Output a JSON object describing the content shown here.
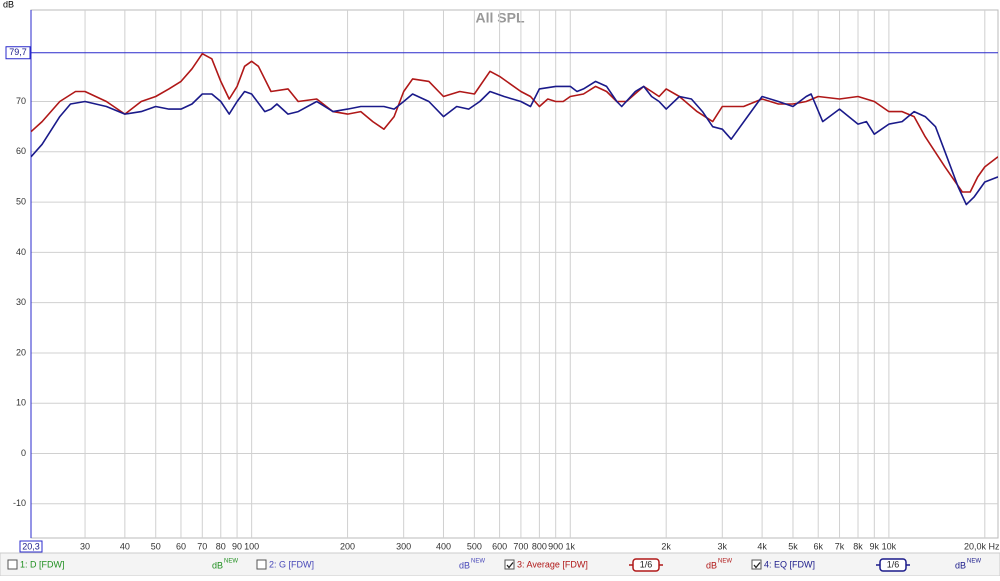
{
  "chart_data": {
    "type": "line",
    "title": "All SPL",
    "y_unit": "dB",
    "xscale": "log",
    "grid": true,
    "xlim": [
      20.3,
      22000
    ],
    "ylim": [
      -16.8,
      88.2
    ],
    "yticks": [
      -10,
      0,
      10,
      20,
      30,
      40,
      50,
      60,
      70
    ],
    "xticks": [
      {
        "value": 20.3,
        "label": "20,3"
      },
      30,
      40,
      50,
      60,
      70,
      80,
      90,
      100,
      200,
      300,
      400,
      500,
      600,
      700,
      800,
      900,
      {
        "value": 1000,
        "label": "1k"
      },
      {
        "value": 2000,
        "label": "2k"
      },
      {
        "value": 3000,
        "label": "3k"
      },
      {
        "value": 4000,
        "label": "4k"
      },
      {
        "value": 5000,
        "label": "5k"
      },
      {
        "value": 6000,
        "label": "6k"
      },
      {
        "value": 7000,
        "label": "7k"
      },
      {
        "value": 8000,
        "label": "8k"
      },
      {
        "value": 9000,
        "label": "9k"
      },
      {
        "value": 10000,
        "label": "10k"
      },
      {
        "value": 20000,
        "label": "20,0k Hz"
      }
    ],
    "cursor_y": {
      "value": 79.7,
      "label": "79,7",
      "color": "#2a2acc"
    },
    "hidden_series": [
      {
        "name": "1: D [FDW]",
        "color": "#1f8f1f",
        "checked": false,
        "unit": "dB",
        "unit_sup": "NEW"
      },
      {
        "name": "2: G [FDW]",
        "color": "#4646b8",
        "checked": false,
        "unit": "dB",
        "unit_sup": "NEW"
      }
    ],
    "series": [
      {
        "name": "3: Average [FDW]",
        "color": "#b01818",
        "checked": true,
        "smoothing": "1/6",
        "unit": "dB",
        "unit_sup": "NEW",
        "x": [
          20.3,
          22,
          25,
          28,
          30,
          35,
          40,
          45,
          50,
          55,
          60,
          65,
          70,
          75,
          80,
          85,
          90,
          95,
          100,
          105,
          115,
          130,
          140,
          160,
          180,
          200,
          220,
          240,
          260,
          280,
          300,
          320,
          360,
          400,
          450,
          500,
          560,
          600,
          700,
          750,
          800,
          850,
          900,
          950,
          1000,
          1100,
          1200,
          1300,
          1400,
          1500,
          1700,
          1800,
          1900,
          2000,
          2200,
          2500,
          2800,
          3000,
          3500,
          4000,
          4500,
          5000,
          5500,
          6000,
          7000,
          8000,
          9000,
          10000,
          11000,
          12000,
          13000,
          15000,
          17000,
          18000,
          19000,
          20000,
          22000
        ],
        "values": [
          64,
          66,
          70,
          72,
          72,
          70,
          67.5,
          70,
          71,
          72.5,
          74,
          76.5,
          79.5,
          78.5,
          74,
          70.5,
          73,
          77,
          78,
          77,
          72,
          72.5,
          70,
          70.5,
          68,
          67.5,
          68,
          66,
          64.5,
          67,
          72,
          74.5,
          74,
          71,
          72,
          71.5,
          76,
          75,
          72,
          71,
          69,
          70.5,
          70,
          70,
          71,
          71.5,
          73,
          72,
          70,
          70,
          73,
          72,
          71,
          72.5,
          71,
          68,
          66,
          69,
          69,
          70.5,
          69.5,
          69.5,
          70,
          71,
          70.5,
          71,
          70,
          68,
          68,
          67,
          63,
          57,
          52,
          52,
          55,
          57,
          59
        ]
      },
      {
        "name": "4: EQ [FDW]",
        "color": "#1a1a8a",
        "checked": true,
        "smoothing": "1/6",
        "unit": "dB",
        "unit_sup": "NEW",
        "x": [
          20.3,
          22,
          25,
          27,
          30,
          35,
          40,
          45,
          50,
          55,
          60,
          65,
          70,
          75,
          80,
          85,
          90,
          95,
          100,
          110,
          115,
          120,
          130,
          140,
          160,
          180,
          200,
          220,
          260,
          280,
          300,
          320,
          360,
          400,
          440,
          480,
          520,
          560,
          620,
          700,
          750,
          800,
          900,
          1000,
          1050,
          1100,
          1200,
          1300,
          1400,
          1450,
          1600,
          1700,
          1800,
          1900,
          2000,
          2200,
          2400,
          2600,
          2800,
          3000,
          3200,
          3600,
          4000,
          4500,
          5000,
          5500,
          5700,
          6200,
          7000,
          8000,
          8500,
          9000,
          10000,
          11000,
          12000,
          13000,
          14000,
          15000,
          16500,
          17500,
          18500,
          20000,
          22000
        ],
        "values": [
          59,
          61.5,
          67,
          69.5,
          70,
          69,
          67.5,
          68,
          69,
          68.5,
          68.5,
          69.5,
          71.5,
          71.5,
          70,
          67.5,
          70,
          72,
          71.5,
          68,
          68.5,
          69.5,
          67.5,
          68,
          70,
          68,
          68.5,
          69,
          69,
          68.5,
          70,
          71.5,
          70,
          67,
          69,
          68.5,
          70,
          72,
          71,
          70,
          69,
          72.5,
          73,
          73,
          72,
          72.5,
          74,
          73,
          70,
          69,
          72,
          73,
          71,
          70,
          68.5,
          71,
          70.5,
          68,
          65,
          64.5,
          62.5,
          67,
          71,
          70,
          69,
          71,
          71.5,
          66,
          68.5,
          65.5,
          66,
          63.5,
          65.5,
          66,
          68,
          67,
          65,
          60,
          53,
          49.5,
          51,
          54,
          55
        ]
      }
    ]
  }
}
